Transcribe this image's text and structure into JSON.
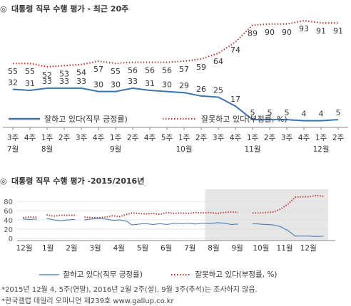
{
  "colors": {
    "approve": "#3a74b0",
    "disapprove": "#b8302a",
    "shade": "#e6e6e6",
    "axis": "#888888",
    "grid": "#dddddd"
  },
  "chart1": {
    "symbol": "◎",
    "title": "대통령 직무 수행 평가 - 최근 20주",
    "legend": {
      "approve": "잘하고 있다(직무 긍정률)",
      "disapprove": "잘못하고 있다(부정률, %)"
    },
    "ticks": [
      {
        "week": "3주",
        "month": "7월"
      },
      {
        "week": "4주",
        "month": ""
      },
      {
        "week": "1주",
        "month": "8월"
      },
      {
        "week": "2주",
        "month": ""
      },
      {
        "week": "3주",
        "month": ""
      },
      {
        "week": "4주",
        "month": ""
      },
      {
        "week": "1주",
        "month": "9월"
      },
      {
        "week": "2주",
        "month": ""
      },
      {
        "week": "4주",
        "month": ""
      },
      {
        "week": "5주",
        "month": ""
      },
      {
        "week": "1주",
        "month": "10월"
      },
      {
        "week": "2주",
        "month": ""
      },
      {
        "week": "3주",
        "month": ""
      },
      {
        "week": "4주",
        "month": ""
      },
      {
        "week": "1주",
        "month": "11월"
      },
      {
        "week": "2주",
        "month": ""
      },
      {
        "week": "3주",
        "month": ""
      },
      {
        "week": "4주",
        "month": ""
      },
      {
        "week": "1주",
        "month": "12월"
      },
      {
        "week": "2주",
        "month": ""
      }
    ],
    "chart_data": {
      "type": "line",
      "categories": [
        "7월 3주",
        "7월 4주",
        "8월 1주",
        "8월 2주",
        "8월 3주",
        "8월 4주",
        "9월 1주",
        "9월 2주",
        "9월 4주",
        "9월 5주",
        "10월 1주",
        "10월 2주",
        "10월 3주",
        "10월 4주",
        "11월 1주",
        "11월 2주",
        "11월 3주",
        "11월 4주",
        "12월 1주",
        "12월 2주"
      ],
      "series": [
        {
          "name": "잘하고 있다(직무 긍정률)",
          "values": [
            32,
            31,
            33,
            33,
            33,
            30,
            30,
            33,
            31,
            30,
            29,
            26,
            25,
            17,
            5,
            5,
            5,
            4,
            4,
            5
          ]
        },
        {
          "name": "잘못하고 있다(부정률, %)",
          "values": [
            55,
            55,
            52,
            53,
            54,
            57,
            55,
            56,
            56,
            56,
            57,
            59,
            64,
            74,
            89,
            90,
            90,
            93,
            91,
            91
          ]
        }
      ],
      "ylim": [
        0,
        100
      ]
    }
  },
  "chart2": {
    "symbol": "◎",
    "title": "대통령 직무 수행 평가 -2015/2016년",
    "yticks": [
      "0",
      "20",
      "40",
      "60",
      "80"
    ],
    "months": [
      "12월",
      "1월",
      "2월",
      "3월",
      "4월",
      "5월",
      "6월",
      "7월",
      "8월",
      "9월",
      "10월",
      "11월",
      "12월"
    ],
    "legend": {
      "approve": "잘하고 있다(직무 긍정률)",
      "disapprove": "잘못하고 있다(부정률, %)"
    },
    "chart_data": {
      "type": "line",
      "ylim": [
        0,
        100
      ],
      "shaded_x_range": [
        7.7,
        13.5
      ],
      "series": [
        {
          "name": "잘하고 있다(직무 긍정률)",
          "segments": [
            [
              [
                0.0,
                42
              ],
              [
                0.3,
                41
              ],
              [
                0.6,
                42
              ]
            ],
            [
              [
                1.0,
                43
              ],
              [
                1.3,
                40
              ],
              [
                1.6,
                38
              ],
              [
                1.9,
                40
              ],
              [
                2.2,
                41
              ]
            ],
            [
              [
                2.6,
                40
              ],
              [
                2.9,
                42
              ],
              [
                3.2,
                43
              ],
              [
                3.5,
                42
              ],
              [
                3.8,
                39
              ],
              [
                4.1,
                40
              ],
              [
                4.4,
                37
              ],
              [
                4.6,
                29
              ],
              [
                4.9,
                31
              ],
              [
                5.2,
                32
              ],
              [
                5.5,
                30
              ],
              [
                5.8,
                32
              ],
              [
                6.1,
                30
              ],
              [
                6.4,
                33
              ],
              [
                6.7,
                32
              ],
              [
                7.0,
                33
              ],
              [
                7.3,
                31
              ],
              [
                7.6,
                33
              ],
              [
                7.9,
                32
              ],
              [
                8.2,
                34
              ],
              [
                8.5,
                33
              ],
              [
                8.8,
                30
              ],
              [
                9.1,
                31
              ]
            ],
            [
              [
                9.7,
                32
              ],
              [
                10.0,
                31
              ],
              [
                10.3,
                30
              ],
              [
                10.6,
                29
              ],
              [
                10.9,
                25
              ],
              [
                11.2,
                17
              ],
              [
                11.5,
                5
              ],
              [
                11.8,
                5
              ],
              [
                12.1,
                5
              ],
              [
                12.4,
                4
              ],
              [
                12.7,
                5
              ]
            ]
          ]
        },
        {
          "name": "잘못하고 있다(부정률, %)",
          "segments": [
            [
              [
                0.0,
                45
              ],
              [
                0.3,
                46
              ],
              [
                0.6,
                46
              ]
            ],
            [
              [
                1.0,
                51
              ],
              [
                1.3,
                48
              ],
              [
                1.6,
                50
              ],
              [
                1.9,
                50
              ],
              [
                2.2,
                50
              ]
            ],
            [
              [
                2.6,
                46
              ],
              [
                2.9,
                45
              ],
              [
                3.2,
                45
              ],
              [
                3.5,
                46
              ],
              [
                3.8,
                49
              ],
              [
                4.1,
                47
              ],
              [
                4.4,
                52
              ],
              [
                4.6,
                55
              ],
              [
                4.9,
                54
              ],
              [
                5.2,
                53
              ],
              [
                5.5,
                54
              ],
              [
                5.8,
                52
              ],
              [
                6.1,
                56
              ],
              [
                6.4,
                54
              ],
              [
                6.7,
                55
              ],
              [
                7.0,
                54
              ],
              [
                7.3,
                56
              ],
              [
                7.6,
                55
              ],
              [
                7.9,
                56
              ],
              [
                8.2,
                54
              ],
              [
                8.5,
                56
              ],
              [
                8.8,
                57
              ],
              [
                9.1,
                56
              ]
            ],
            [
              [
                9.7,
                55
              ],
              [
                10.0,
                55
              ],
              [
                10.3,
                56
              ],
              [
                10.6,
                57
              ],
              [
                10.9,
                64
              ],
              [
                11.2,
                74
              ],
              [
                11.5,
                89
              ],
              [
                11.8,
                90
              ],
              [
                12.1,
                90
              ],
              [
                12.4,
                93
              ],
              [
                12.7,
                91
              ]
            ]
          ]
        }
      ]
    }
  },
  "notes": [
    "*2015년 12월 4, 5주(연말), 2016년 2월 2주(설), 9월 3주(추석)는 조사하지 않음.",
    "*한국갤럽 데일리 오피니언 제239호 www.gallup.co.kr"
  ]
}
